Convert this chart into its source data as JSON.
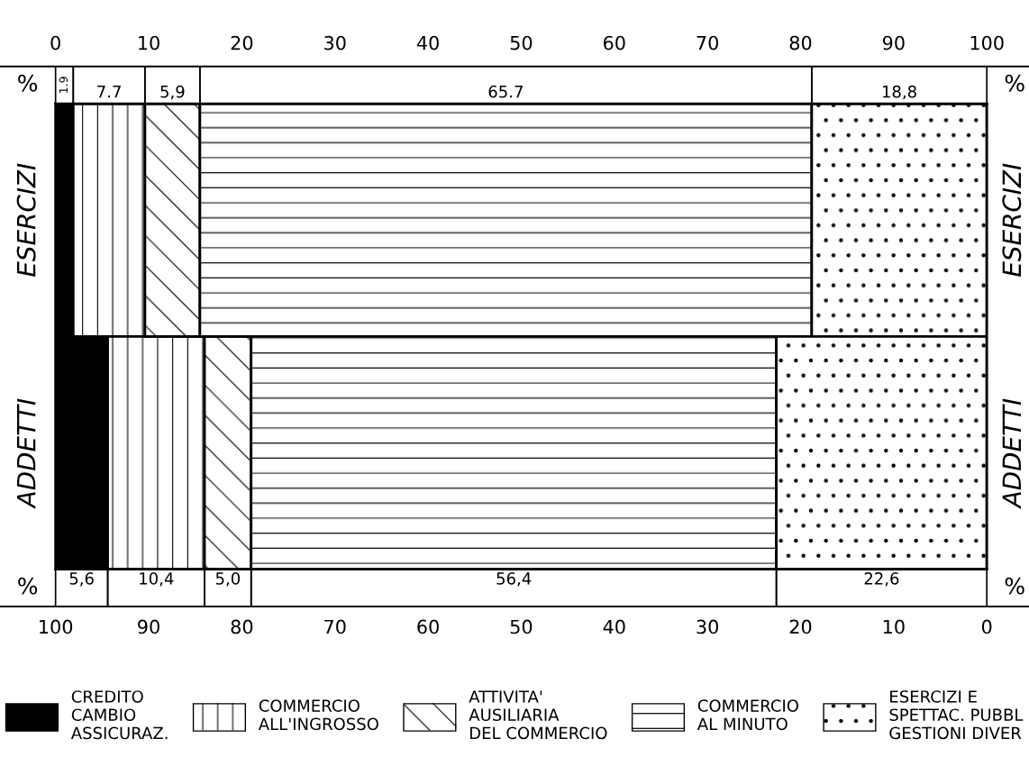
{
  "chart_data": {
    "type": "bar",
    "orientation": "horizontal",
    "stacked": true,
    "categories": [
      "ESERCIZI",
      "ADDETTI"
    ],
    "xlim": [
      0,
      100
    ],
    "xticks": [
      0,
      10,
      20,
      30,
      40,
      50,
      60,
      70,
      80,
      90,
      100
    ],
    "x2lim": [
      100,
      0
    ],
    "x2ticks": [
      100,
      90,
      80,
      70,
      60,
      50,
      40,
      30,
      20,
      10,
      0
    ],
    "series": [
      {
        "name": "CREDITO\nCAMBIO\nASSICURAZ.",
        "color": "#000000",
        "values": [
          1.9,
          5.6
        ],
        "value_labels": [
          "1.9",
          "5,6"
        ]
      },
      {
        "name": "COMMERCIO\nALL'INGROSSO",
        "color": "#ffffff",
        "values": [
          7.7,
          10.4
        ],
        "value_labels": [
          "7.7",
          "10,4"
        ]
      },
      {
        "name": "ATTIVITA'\nAUSILIARIA\nDEL COMMERCIO",
        "color": "#ffffff",
        "values": [
          5.9,
          5.0
        ],
        "value_labels": [
          "5,9",
          "5,0"
        ]
      },
      {
        "name": "COMMERCIO\nAL MINUTO",
        "color": "#ffffff",
        "values": [
          65.7,
          56.4
        ],
        "value_labels": [
          "65.7",
          "56,4"
        ]
      },
      {
        "name": "ESERCIZI E\nSPETTAC. PUBBL\nGESTIONI DIVER",
        "color": "#ffffff",
        "values": [
          18.8,
          22.6
        ],
        "value_labels": [
          "18,8",
          "22,6"
        ]
      }
    ],
    "annotations": [
      "%",
      "%",
      "%",
      "%"
    ],
    "legend": "bottom",
    "grid": false
  }
}
